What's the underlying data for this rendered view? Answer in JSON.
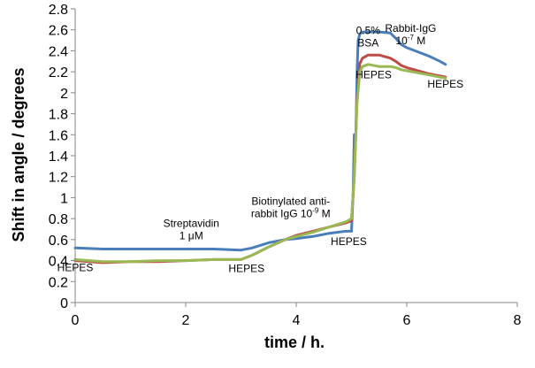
{
  "chart_data": {
    "type": "line",
    "xlabel": "time / h.",
    "ylabel": "Shift in angle / degrees",
    "xlim": [
      0,
      8
    ],
    "ylim": [
      0,
      2.8
    ],
    "xticks": [
      "0",
      "2",
      "4",
      "6",
      "8"
    ],
    "yticks": [
      "0",
      "0.2",
      "0.4",
      "0.6",
      "0.8",
      "1",
      "1.2",
      "1.4",
      "1.6",
      "1.8",
      "2",
      "2.2",
      "2.4",
      "2.6",
      "2.8"
    ],
    "grid": false,
    "legend": "none",
    "series": [
      {
        "color": "#4a7ebb",
        "x": [
          0,
          0.5,
          1,
          1.5,
          2,
          2.5,
          3,
          3.2,
          3.5,
          3.8,
          4,
          4.3,
          4.6,
          4.9,
          5.0,
          5.03,
          5.05,
          5.08,
          5.1,
          5.12,
          5.15,
          5.2,
          5.3,
          5.5,
          5.7,
          5.8,
          5.9,
          6.0,
          6.2,
          6.4,
          6.6,
          6.7
        ],
        "y": [
          0.52,
          0.51,
          0.51,
          0.51,
          0.51,
          0.51,
          0.5,
          0.52,
          0.57,
          0.6,
          0.61,
          0.63,
          0.66,
          0.68,
          0.68,
          1.05,
          1.6,
          1.6,
          2.2,
          2.5,
          2.56,
          2.58,
          2.58,
          2.58,
          2.57,
          2.52,
          2.46,
          2.43,
          2.39,
          2.35,
          2.3,
          2.27
        ]
      },
      {
        "color": "#be4b48",
        "x": [
          0,
          0.5,
          1,
          1.5,
          2,
          2.5,
          3,
          3.2,
          3.5,
          3.8,
          4,
          4.3,
          4.6,
          4.9,
          5.0,
          5.05,
          5.1,
          5.15,
          5.2,
          5.3,
          5.5,
          5.7,
          5.8,
          5.9,
          6.0,
          6.2,
          6.4,
          6.6,
          6.7
        ],
        "y": [
          0.4,
          0.38,
          0.39,
          0.39,
          0.4,
          0.41,
          0.41,
          0.45,
          0.53,
          0.6,
          0.64,
          0.68,
          0.72,
          0.76,
          0.78,
          1.2,
          1.95,
          2.28,
          2.33,
          2.36,
          2.36,
          2.33,
          2.3,
          2.26,
          2.24,
          2.21,
          2.18,
          2.16,
          2.15
        ]
      },
      {
        "color": "#98b954",
        "x": [
          0,
          0.5,
          1,
          1.5,
          2,
          2.5,
          3,
          3.2,
          3.5,
          3.8,
          4,
          4.3,
          4.6,
          4.9,
          5.0,
          5.05,
          5.1,
          5.15,
          5.2,
          5.3,
          5.5,
          5.7,
          5.8,
          5.9,
          6.0,
          6.2,
          6.4,
          6.6,
          6.7
        ],
        "y": [
          0.41,
          0.39,
          0.39,
          0.4,
          0.4,
          0.41,
          0.41,
          0.45,
          0.53,
          0.6,
          0.63,
          0.67,
          0.72,
          0.77,
          0.8,
          1.2,
          1.9,
          2.2,
          2.25,
          2.27,
          2.25,
          2.25,
          2.24,
          2.22,
          2.21,
          2.19,
          2.17,
          2.15,
          2.14
        ]
      }
    ],
    "annotations": [
      {
        "id": "ann-hepes-1",
        "x": 0.0,
        "y": 0.3,
        "lines": [
          {
            "text": "HEPES"
          }
        ]
      },
      {
        "id": "ann-streptavidin",
        "x": 2.1,
        "y": 0.72,
        "lines": [
          {
            "text": "Streptavidin"
          },
          {
            "text": "1 μM"
          }
        ]
      },
      {
        "id": "ann-hepes-2",
        "x": 3.1,
        "y": 0.29,
        "lines": [
          {
            "text": "HEPES"
          }
        ]
      },
      {
        "id": "ann-biotinylated",
        "x": 3.9,
        "y": 0.93,
        "lines": [
          {
            "text": "Biotinylated anti-"
          },
          {
            "text": "rabbit IgG 10",
            "sup": "-9",
            "suffix": " M"
          }
        ]
      },
      {
        "id": "ann-hepes-3",
        "x": 4.95,
        "y": 0.55,
        "lines": [
          {
            "text": "HEPES"
          }
        ]
      },
      {
        "id": "ann-bsa",
        "x": 5.3,
        "y": 2.56,
        "lines": [
          {
            "text": "0.5%"
          },
          {
            "text": "BSA"
          }
        ]
      },
      {
        "id": "ann-rabbit",
        "x": 6.07,
        "y": 2.58,
        "lines": [
          {
            "text": "Rabbit-IgG"
          },
          {
            "text": "10",
            "sup": "-7",
            "suffix": " M"
          }
        ]
      },
      {
        "id": "ann-hepes-4",
        "x": 5.4,
        "y": 2.14,
        "lines": [
          {
            "text": "HEPES"
          }
        ]
      },
      {
        "id": "ann-hepes-5",
        "x": 6.7,
        "y": 2.05,
        "lines": [
          {
            "text": "HEPES"
          }
        ]
      }
    ]
  }
}
